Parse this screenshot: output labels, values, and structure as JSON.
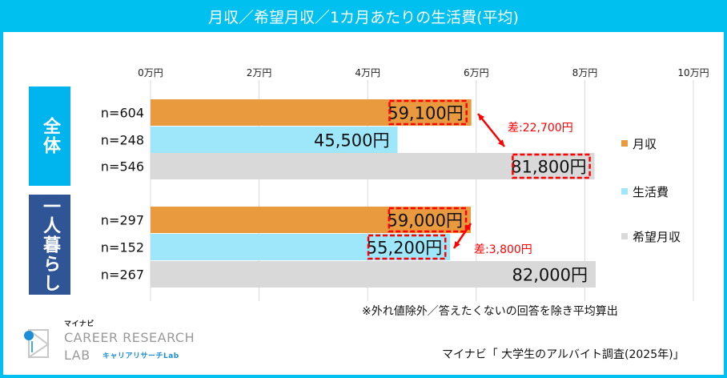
{
  "chart_data": {
    "type": "bar",
    "orientation": "horizontal",
    "title": "月収／希望月収／1カ月あたりの生活費(平均)",
    "xlim": [
      0,
      100000
    ],
    "ticks": [
      "0万円",
      "2万円",
      "4万円",
      "6万円",
      "8万円",
      "10万円"
    ],
    "grid": true,
    "legend_position": "right",
    "series": [
      {
        "name": "月収",
        "color": "#e99a3f"
      },
      {
        "name": "生活費",
        "color": "#9ee6fa"
      },
      {
        "name": "希望月収",
        "color": "#d9d9d9"
      }
    ],
    "groups": [
      {
        "label": "全体",
        "color": "#00b5ee",
        "rows": [
          {
            "series": "月収",
            "n": "n=604",
            "value": 59100,
            "label": "59,100円",
            "highlight": true
          },
          {
            "series": "生活費",
            "n": "n=248",
            "value": 45500,
            "label": "45,500円",
            "highlight": false
          },
          {
            "series": "希望月収",
            "n": "n=546",
            "value": 81800,
            "label": "81,800円",
            "highlight": true
          }
        ],
        "diff": "差:22,700円"
      },
      {
        "label": "一人暮らし",
        "color": "#2f5597",
        "rows": [
          {
            "series": "月収",
            "n": "n=297",
            "value": 59000,
            "label": "59,000円",
            "highlight": true
          },
          {
            "series": "生活費",
            "n": "n=152",
            "value": 55200,
            "label": "55,200円",
            "highlight": true
          },
          {
            "series": "希望月収",
            "n": "n=267",
            "value": 82000,
            "label": "82,000円",
            "highlight": false
          }
        ],
        "diff": "差:3,800円"
      }
    ],
    "highlight_color": "#ff0000"
  },
  "footnote": "※外れ値除外／答えたくないの回答を除き平均算出",
  "source": "マイナビ「 大学生のアルバイト調査(2025年)」",
  "logo": {
    "brand": "マイナビ",
    "line1": "CAREER RESEARCH",
    "line2": "LAB",
    "sub": "キャリアリサーチLab"
  }
}
